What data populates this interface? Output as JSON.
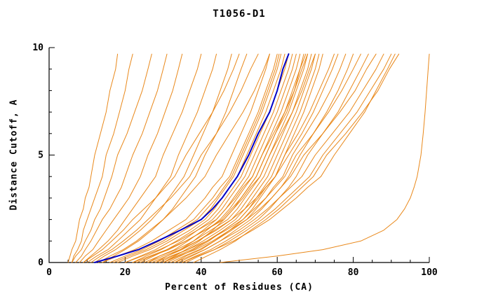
{
  "chart": {
    "title": "T1056-D1",
    "xlabel": "Percent of Residues (CA)",
    "ylabel": "Distance Cutoff, A"
  },
  "chart_data": {
    "type": "line",
    "title": "T1056-D1",
    "xlabel": "Percent of Residues (CA)",
    "ylabel": "Distance Cutoff, A",
    "xlim": [
      0,
      100
    ],
    "ylim": [
      0,
      10
    ],
    "x_ticks": [
      0,
      20,
      40,
      60,
      80,
      100
    ],
    "y_ticks": [
      0,
      5,
      10
    ],
    "x_minor_step": 5,
    "y_minor_step": 1,
    "grid": false,
    "legend": "none",
    "colors": {
      "model": "#e8820e",
      "highlight": "#0000c8",
      "axis": "#000000"
    },
    "y_levels": [
      0,
      0.3,
      0.6,
      1,
      1.5,
      2,
      2.5,
      3,
      3.5,
      4,
      5,
      6,
      7,
      8,
      9,
      9.7
    ],
    "series": [
      {
        "name": "model-01",
        "color": "model",
        "width": 1,
        "x": [
          5,
          5.5,
          6,
          7,
          7.5,
          8,
          9,
          9.5,
          10.5,
          11,
          12,
          13.5,
          15,
          16,
          17.5,
          18
        ]
      },
      {
        "name": "model-02",
        "color": "model",
        "width": 1,
        "x": [
          6,
          6.5,
          7.5,
          8.5,
          9,
          10,
          11,
          12,
          13,
          14,
          15,
          17,
          18.5,
          20,
          21,
          22
        ]
      },
      {
        "name": "model-03",
        "color": "model",
        "width": 1,
        "x": [
          6,
          7,
          8.5,
          9.5,
          11,
          12,
          13.5,
          14.5,
          15.5,
          16.5,
          18,
          20.5,
          22.5,
          24.5,
          26,
          27
        ]
      },
      {
        "name": "model-04",
        "color": "model",
        "width": 1,
        "x": [
          7,
          8.5,
          9.5,
          11,
          12.5,
          14,
          16,
          17.5,
          19,
          20,
          22,
          24.5,
          26.5,
          28.5,
          30,
          31
        ]
      },
      {
        "name": "model-05",
        "color": "model",
        "width": 1,
        "x": [
          8,
          9.5,
          11.5,
          13,
          15,
          17,
          19,
          21,
          22.5,
          24,
          26,
          28.5,
          30.5,
          32.5,
          34,
          35
        ]
      },
      {
        "name": "model-06",
        "color": "model",
        "width": 1,
        "x": [
          9,
          11,
          13,
          15.5,
          18,
          20,
          22,
          24,
          26,
          28,
          30,
          32.5,
          35,
          37,
          39,
          40
        ]
      },
      {
        "name": "model-07",
        "color": "model",
        "width": 1,
        "x": [
          10,
          12.5,
          15.5,
          18,
          21,
          24,
          26,
          28,
          30,
          32,
          34,
          36.5,
          39,
          41,
          43,
          44
        ]
      },
      {
        "name": "model-08",
        "color": "model",
        "width": 1,
        "x": [
          12,
          14.5,
          17.5,
          20.5,
          24,
          27,
          29.5,
          31.5,
          33.5,
          35.5,
          38,
          40.5,
          43,
          45,
          47,
          48
        ]
      },
      {
        "name": "model-09",
        "color": "model",
        "width": 1,
        "x": [
          14,
          17,
          20,
          23.5,
          27,
          30,
          32.5,
          34.5,
          36.5,
          38.5,
          41,
          44,
          46.5,
          48.5,
          50.5,
          52
        ]
      },
      {
        "name": "model-10",
        "color": "model",
        "width": 1,
        "x": [
          9,
          11.5,
          14,
          16.5,
          19.5,
          22,
          25,
          28,
          30.5,
          33,
          36,
          39.5,
          43,
          46,
          48.5,
          50
        ]
      },
      {
        "name": "model-11",
        "color": "model",
        "width": 1,
        "x": [
          11,
          13.5,
          16.5,
          19.5,
          23,
          26,
          29,
          32,
          34.5,
          37,
          40,
          44,
          47.5,
          50.5,
          53,
          55
        ]
      },
      {
        "name": "model-12",
        "color": "model",
        "width": 1,
        "x": [
          13,
          16,
          19.5,
          23,
          26.5,
          30,
          33,
          36,
          38.5,
          41,
          44,
          47.5,
          51,
          54,
          56.5,
          58
        ]
      },
      {
        "name": "model-13",
        "color": "model",
        "width": 1,
        "x": [
          14,
          18,
          22.5,
          27,
          31.5,
          36,
          38.5,
          41,
          43,
          45.5,
          48,
          50.5,
          53,
          55,
          57,
          58
        ]
      },
      {
        "name": "model-14",
        "color": "model",
        "width": 1,
        "x": [
          16,
          20,
          24.5,
          29,
          33.5,
          38,
          40.5,
          43,
          45,
          47.5,
          50,
          52.5,
          55,
          57,
          59,
          60
        ]
      },
      {
        "name": "model-15",
        "color": "model",
        "width": 1,
        "x": [
          18,
          22,
          26.5,
          31,
          35.5,
          40,
          42.5,
          44.5,
          46.5,
          48.5,
          51,
          53.5,
          56,
          58,
          60,
          61
        ]
      },
      {
        "name": "model-16",
        "color": "model",
        "width": 1,
        "x": [
          20,
          24,
          28,
          32,
          37,
          41,
          43.5,
          45.5,
          47.5,
          49.5,
          52,
          54.5,
          57,
          59,
          61,
          62
        ]
      },
      {
        "name": "model-17",
        "color": "model",
        "width": 1,
        "x": [
          22,
          25.5,
          29.5,
          33.5,
          38,
          42,
          44.5,
          46.5,
          48.5,
          50.5,
          53,
          55.5,
          58,
          60,
          62,
          63
        ]
      },
      {
        "name": "model-18",
        "color": "model",
        "width": 1,
        "x": [
          24,
          27.5,
          31,
          35,
          39,
          43,
          45.5,
          47.5,
          49.5,
          51.5,
          54,
          56.5,
          59,
          61,
          63,
          64
        ]
      },
      {
        "name": "model-19",
        "color": "model",
        "width": 1,
        "x": [
          26,
          29,
          33,
          36.5,
          40.5,
          44,
          46.5,
          48.5,
          50.5,
          52.5,
          55,
          57.5,
          60,
          62,
          64,
          65
        ]
      },
      {
        "name": "model-20",
        "color": "model",
        "width": 1,
        "x": [
          28,
          31,
          34.5,
          38,
          41.5,
          45,
          47.5,
          49.5,
          51.5,
          53.5,
          56,
          58.5,
          61,
          63,
          65,
          66
        ]
      },
      {
        "name": "model-21",
        "color": "model",
        "width": 1,
        "x": [
          30,
          33,
          36,
          39.5,
          43,
          46,
          48.5,
          50.5,
          52.5,
          54.5,
          57,
          59.5,
          62,
          64,
          66,
          67
        ]
      },
      {
        "name": "model-22",
        "color": "model",
        "width": 1,
        "x": [
          25,
          29,
          33.5,
          38,
          42.5,
          47,
          49.5,
          51.5,
          53.5,
          55.5,
          58,
          60.5,
          63,
          65,
          67,
          68
        ]
      },
      {
        "name": "model-23",
        "color": "model",
        "width": 1,
        "x": [
          27,
          31,
          35,
          39,
          44,
          48,
          50.5,
          52.5,
          54.5,
          56.5,
          59,
          61.5,
          64,
          66,
          68,
          69
        ]
      },
      {
        "name": "model-24",
        "color": "model",
        "width": 1,
        "x": [
          29,
          32.5,
          36.5,
          40.5,
          45,
          49,
          51.5,
          53.5,
          55.5,
          57.5,
          60,
          62.5,
          65,
          67,
          69,
          70
        ]
      },
      {
        "name": "model-25",
        "color": "model",
        "width": 1,
        "x": [
          31,
          34.5,
          38,
          42,
          46,
          50,
          52.5,
          54.5,
          56.5,
          58.5,
          61,
          63.5,
          66,
          68,
          70,
          71
        ]
      },
      {
        "name": "model-26",
        "color": "model",
        "width": 1,
        "x": [
          33,
          36,
          40,
          43.5,
          47.5,
          51,
          53.5,
          55.5,
          57.5,
          59.5,
          62,
          64.5,
          67,
          69,
          71,
          72
        ]
      },
      {
        "name": "model-27",
        "color": "model",
        "width": 1,
        "x": [
          20,
          24.5,
          29,
          34,
          39,
          44,
          46.5,
          49,
          51,
          53.5,
          56,
          59,
          62,
          64.5,
          66.5,
          68
        ]
      },
      {
        "name": "model-28",
        "color": "model",
        "width": 1,
        "x": [
          22,
          26.5,
          31,
          36,
          41,
          46,
          48.5,
          51,
          53,
          55.5,
          58,
          61,
          64,
          66.5,
          68.5,
          70
        ]
      },
      {
        "name": "model-29",
        "color": "model",
        "width": 1,
        "x": [
          30,
          33.5,
          37.5,
          41.5,
          46,
          50,
          52.5,
          55,
          57,
          59.5,
          62,
          65.5,
          68.5,
          71,
          73.5,
          75
        ]
      },
      {
        "name": "model-30",
        "color": "model",
        "width": 1,
        "x": [
          32,
          35.5,
          39.5,
          43.5,
          48,
          52,
          54.5,
          57,
          59,
          61.5,
          64,
          67.5,
          71,
          74,
          76.5,
          78
        ]
      },
      {
        "name": "model-31",
        "color": "model",
        "width": 1,
        "x": [
          34,
          37.5,
          41,
          45,
          49,
          53,
          56,
          58.5,
          61,
          63,
          66,
          69.5,
          73,
          76,
          78.5,
          80
        ]
      },
      {
        "name": "model-32",
        "color": "model",
        "width": 1,
        "x": [
          28,
          32,
          36.5,
          41.5,
          46.5,
          51,
          54,
          57,
          59.5,
          62,
          65,
          69.5,
          73.5,
          77,
          80,
          82
        ]
      },
      {
        "name": "model-33",
        "color": "model",
        "width": 1,
        "x": [
          35,
          38.5,
          42.5,
          46.5,
          51,
          55,
          58,
          60.5,
          63,
          65,
          68,
          72,
          76,
          79,
          82,
          84
        ]
      },
      {
        "name": "model-34",
        "color": "model",
        "width": 1,
        "x": [
          30,
          34,
          38.5,
          43,
          47.5,
          52,
          55.5,
          58.5,
          61,
          63.5,
          67,
          72,
          76.5,
          80.5,
          83.5,
          86
        ]
      },
      {
        "name": "model-35",
        "color": "model",
        "width": 1,
        "x": [
          33,
          37,
          41,
          45,
          50,
          54,
          57.5,
          60.5,
          63.5,
          66.5,
          70,
          74.5,
          79,
          82.5,
          86,
          88
        ]
      },
      {
        "name": "model-36",
        "color": "model",
        "width": 1,
        "x": [
          36,
          39.5,
          43.5,
          47.5,
          52,
          56,
          59.5,
          62.5,
          65.5,
          68.5,
          72,
          76.5,
          81,
          84.5,
          88,
          90
        ]
      },
      {
        "name": "model-37",
        "color": "model",
        "width": 1,
        "x": [
          38,
          41.5,
          45,
          49,
          53,
          57,
          60.5,
          63.5,
          66.5,
          69.5,
          73,
          78,
          82.5,
          86.5,
          89.5,
          92
        ]
      },
      {
        "name": "model-38",
        "color": "model",
        "width": 1,
        "x": [
          26,
          30,
          34.5,
          39,
          43.5,
          48,
          51.5,
          54.5,
          57,
          59.5,
          63,
          66.5,
          69.5,
          72,
          74.5,
          76
        ]
      },
      {
        "name": "model-39-outlier",
        "color": "model",
        "width": 1,
        "x": [
          45,
          60,
          72,
          82,
          88,
          91.5,
          93.5,
          95,
          96,
          96.8,
          97.8,
          98.4,
          98.9,
          99.3,
          99.7,
          100
        ]
      },
      {
        "name": "model-40",
        "color": "model",
        "width": 1,
        "x": [
          35,
          39,
          43.5,
          48.5,
          53.5,
          58,
          61.5,
          65,
          68,
          71.5,
          75,
          79,
          83,
          86,
          89,
          91
        ]
      },
      {
        "name": "model-41",
        "color": "model",
        "width": 1,
        "x": [
          17,
          21,
          25.5,
          30,
          34.5,
          39,
          41.5,
          44,
          46,
          48,
          50.5,
          53,
          55.5,
          57.5,
          59.5,
          60.5
        ]
      },
      {
        "name": "model-42",
        "color": "model",
        "width": 1,
        "x": [
          23,
          27,
          31.5,
          36,
          41,
          45.5,
          48,
          50.5,
          52.5,
          54.5,
          57,
          59.5,
          62.5,
          64.5,
          66,
          67.5
        ]
      },
      {
        "name": "highlighted-model",
        "color": "highlight",
        "width": 2,
        "x": [
          12,
          18,
          23.5,
          28.5,
          34.5,
          40,
          43,
          45.5,
          47.5,
          49.5,
          52.5,
          55,
          58,
          60,
          61.5,
          63
        ]
      }
    ]
  }
}
